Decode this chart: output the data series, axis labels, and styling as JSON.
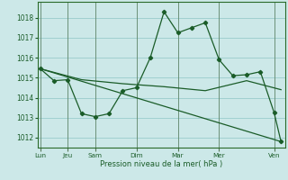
{
  "title": "Pression niveau de la mer( hPa )",
  "bg_color": "#cce8e8",
  "grid_color": "#99cccc",
  "line_color": "#1a5c28",
  "ylim": [
    1011.5,
    1018.8
  ],
  "yticks": [
    1012,
    1013,
    1014,
    1015,
    1016,
    1017,
    1018
  ],
  "day_labels": [
    "Lun",
    "Jeu",
    "Sam",
    "Dim",
    "Mar",
    "Mer",
    "Ven"
  ],
  "day_positions": [
    0,
    2,
    4,
    7,
    10,
    13,
    17
  ],
  "xlim": [
    -0.2,
    17.8
  ],
  "series1_x": [
    0,
    1,
    2,
    3,
    4,
    5,
    6,
    7,
    8,
    9,
    10,
    11,
    12,
    13,
    14,
    15,
    16,
    17,
    17.5
  ],
  "series1_y": [
    1015.45,
    1014.85,
    1014.9,
    1013.2,
    1013.05,
    1013.2,
    1014.35,
    1014.5,
    1016.0,
    1018.3,
    1017.25,
    1017.5,
    1017.75,
    1015.9,
    1015.1,
    1015.15,
    1015.3,
    1013.25,
    1011.8
  ],
  "series2_x": [
    0,
    17.5
  ],
  "series2_y": [
    1015.45,
    1011.8
  ],
  "series3_x": [
    0,
    3,
    6,
    9,
    12,
    15,
    17.5
  ],
  "series3_y": [
    1015.45,
    1014.9,
    1014.7,
    1014.55,
    1014.35,
    1014.85,
    1014.4
  ]
}
